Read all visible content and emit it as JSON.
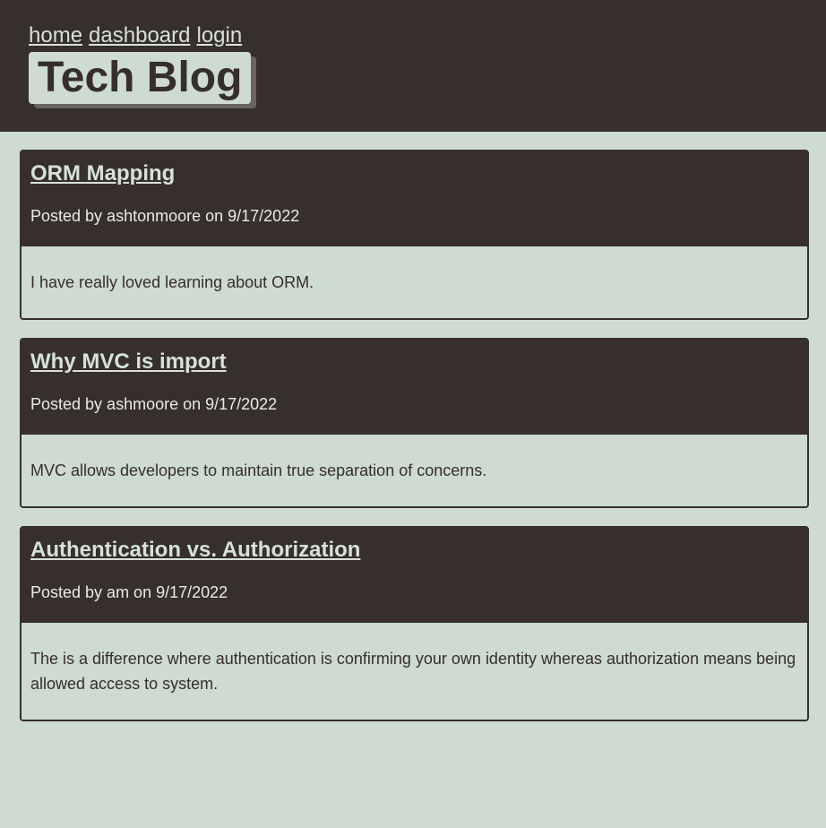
{
  "nav": {
    "home": "home",
    "dashboard": "dashboard",
    "login": "login"
  },
  "site_title": "Tech Blog",
  "posts": [
    {
      "title": "ORM Mapping",
      "meta": "Posted by ashtonmoore on 9/17/2022",
      "body": "I have really loved learning about ORM."
    },
    {
      "title": "Why MVC is import",
      "meta": "Posted by ashmoore on 9/17/2022",
      "body": "MVC allows developers to maintain true separation of concerns."
    },
    {
      "title": "Authentication vs. Authorization",
      "meta": "Posted by am on 9/17/2022",
      "body": "The is a difference where authentication is confirming your own identity whereas authorization means being allowed access to system."
    }
  ],
  "colors": {
    "header_bg": "#372e2e",
    "page_bg": "#cddbd1",
    "link": "#d6e1da"
  }
}
